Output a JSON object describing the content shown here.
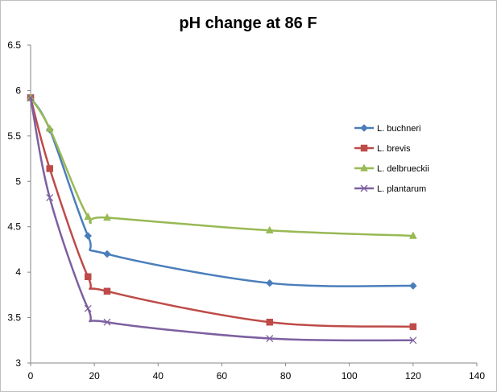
{
  "chart_data": {
    "type": "line",
    "title": "pH change at 86 F",
    "xlabel": "",
    "ylabel": "",
    "xlim": [
      0,
      140
    ],
    "ylim": [
      3,
      6.5
    ],
    "x_ticks": [
      "0",
      "20",
      "40",
      "60",
      "80",
      "100",
      "120",
      "140"
    ],
    "y_ticks": [
      "3",
      "3.5",
      "4",
      "4.5",
      "5",
      "5.5",
      "6",
      "6.5"
    ],
    "grid": false,
    "smooth": true,
    "legend_position": "right",
    "series": [
      {
        "name": "L. buchneri",
        "color": "#4a7ebb",
        "marker": "diamond",
        "points": [
          [
            0,
            5.92
          ],
          [
            6,
            5.57
          ],
          [
            18,
            4.4
          ],
          [
            24,
            4.2
          ],
          [
            75,
            3.88
          ],
          [
            120,
            3.85
          ]
        ]
      },
      {
        "name": "L. brevis",
        "color": "#be4b48",
        "marker": "square",
        "points": [
          [
            0,
            5.92
          ],
          [
            6,
            5.14
          ],
          [
            18,
            3.95
          ],
          [
            24,
            3.79
          ],
          [
            75,
            3.45
          ],
          [
            120,
            3.4
          ]
        ]
      },
      {
        "name": "L. delbrueckii",
        "color": "#98b954",
        "marker": "triangle",
        "points": [
          [
            0,
            5.92
          ],
          [
            6,
            5.58
          ],
          [
            18,
            4.61
          ],
          [
            24,
            4.6
          ],
          [
            75,
            4.46
          ],
          [
            120,
            4.4
          ]
        ]
      },
      {
        "name": "L. plantarum",
        "color": "#7d60a0",
        "marker": "x",
        "points": [
          [
            0,
            5.92
          ],
          [
            6,
            4.82
          ],
          [
            18,
            3.6
          ],
          [
            24,
            3.45
          ],
          [
            75,
            3.27
          ],
          [
            120,
            3.25
          ]
        ]
      }
    ]
  }
}
